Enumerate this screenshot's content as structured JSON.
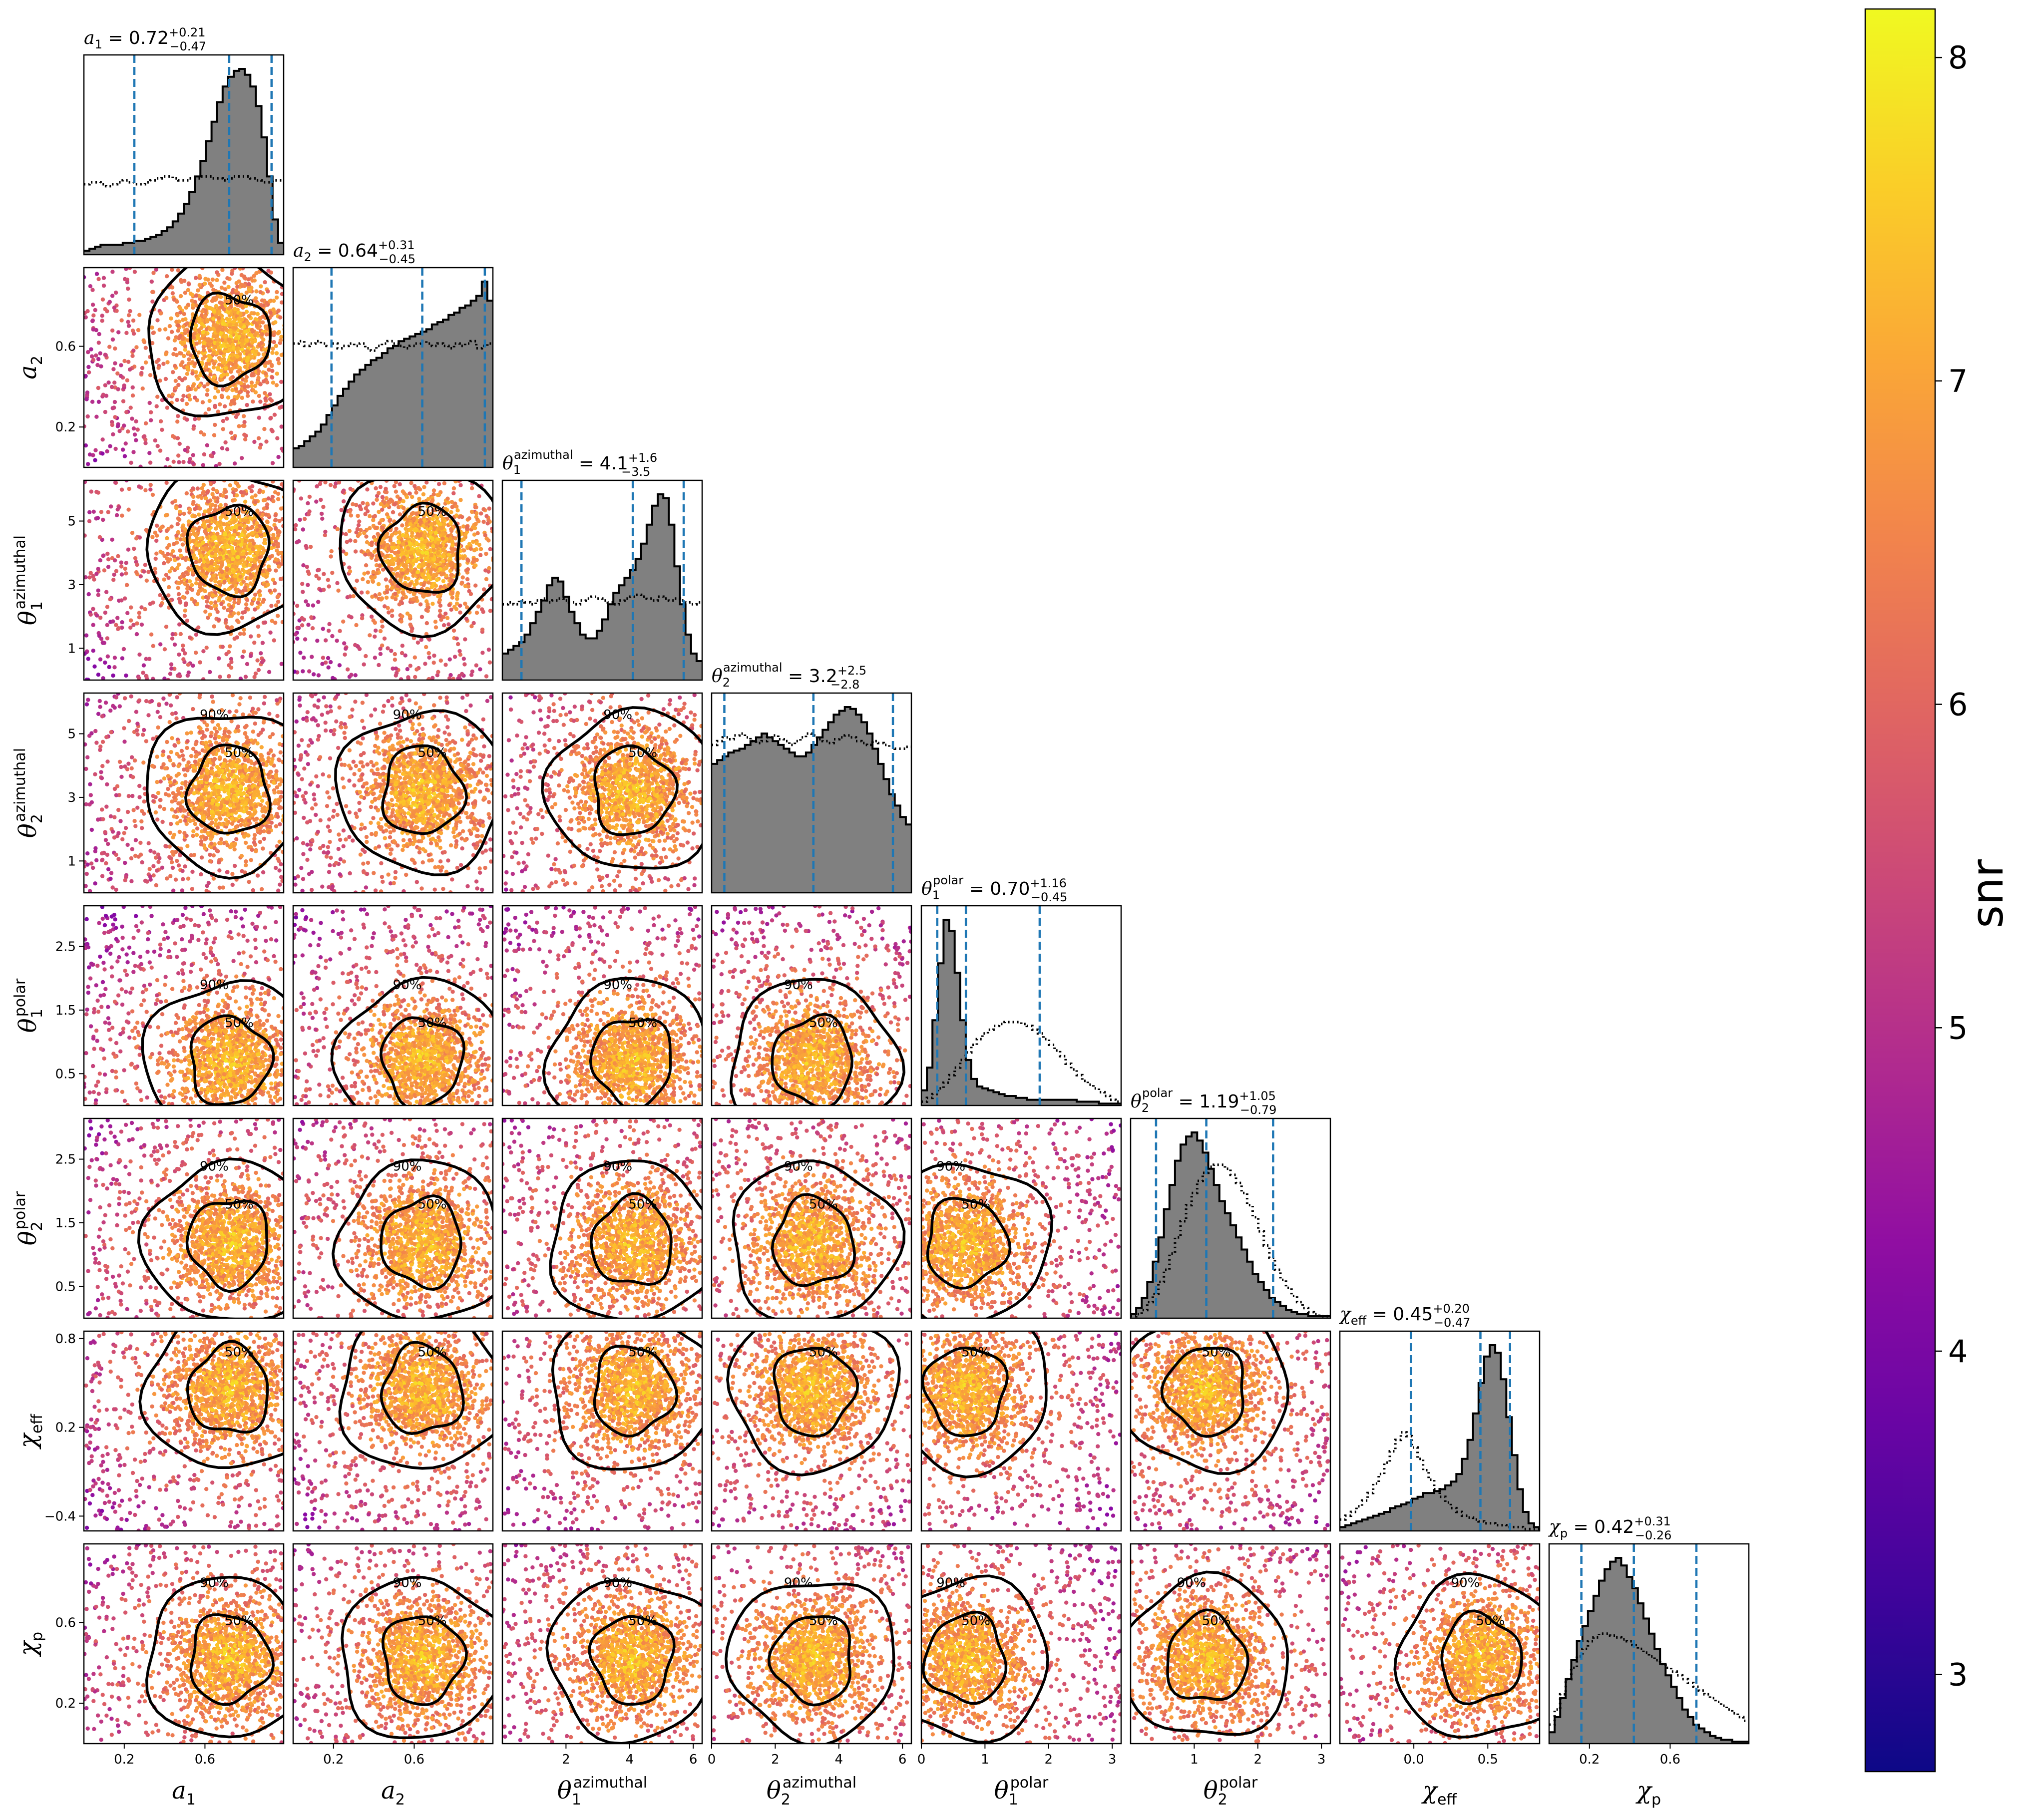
{
  "chart_data": {
    "type": "corner",
    "parameters": [
      {
        "key": "a1",
        "label_base": "a",
        "label_sub": "1",
        "label_sup": "",
        "title_value": "0.72",
        "title_plus": "+0.21",
        "title_minus": "−0.47",
        "range": [
          0.0,
          0.99
        ],
        "ticks": [
          0.2,
          0.6
        ],
        "tick_labels": [
          "0.2",
          "0.6"
        ],
        "median": 0.72,
        "low": 0.25,
        "high": 0.93
      },
      {
        "key": "a2",
        "label_base": "a",
        "label_sub": "2",
        "label_sup": "",
        "title_value": "0.64",
        "title_plus": "+0.31",
        "title_minus": "−0.45",
        "range": [
          0.0,
          0.99
        ],
        "ticks": [
          0.2,
          0.6
        ],
        "tick_labels": [
          "0.2",
          "0.6"
        ],
        "median": 0.64,
        "low": 0.19,
        "high": 0.95
      },
      {
        "key": "theta1_azimuthal",
        "label_base": "θ",
        "label_sub": "1",
        "label_sup": "azimuthal",
        "title_value": "4.1",
        "title_plus": "+1.6",
        "title_minus": "−3.5",
        "range": [
          0.0,
          6.28
        ],
        "ticks": [
          1,
          3,
          5
        ],
        "tick_labels": [
          "1",
          "3",
          "5"
        ],
        "xticks": [
          2,
          4,
          6
        ],
        "xtick_labels": [
          "2",
          "4",
          "6"
        ],
        "median": 4.1,
        "low": 0.6,
        "high": 5.7
      },
      {
        "key": "theta2_azimuthal",
        "label_base": "θ",
        "label_sub": "2",
        "label_sup": "azimuthal",
        "title_value": "3.2",
        "title_plus": "+2.5",
        "title_minus": "−2.8",
        "range": [
          0.0,
          6.28
        ],
        "ticks": [
          1,
          3,
          5
        ],
        "tick_labels": [
          "1",
          "3",
          "5"
        ],
        "xticks": [
          0,
          2,
          4,
          6
        ],
        "xtick_labels": [
          "0",
          "2",
          "4",
          "6"
        ],
        "median": 3.2,
        "low": 0.4,
        "high": 5.7
      },
      {
        "key": "theta1_polar",
        "label_base": "θ",
        "label_sub": "1",
        "label_sup": "polar",
        "title_value": "0.70",
        "title_plus": "+1.16",
        "title_minus": "−0.45",
        "range": [
          0.0,
          3.14
        ],
        "ticks": [
          0.5,
          1.5,
          2.5
        ],
        "tick_labels": [
          "0.5",
          "1.5",
          "2.5"
        ],
        "xticks": [
          0,
          1,
          2,
          3
        ],
        "xtick_labels": [
          "0",
          "1",
          "2",
          "3"
        ],
        "median": 0.7,
        "low": 0.25,
        "high": 1.86
      },
      {
        "key": "theta2_polar",
        "label_base": "θ",
        "label_sub": "2",
        "label_sup": "polar",
        "title_value": "1.19",
        "title_plus": "+1.05",
        "title_minus": "−0.79",
        "range": [
          0.0,
          3.14
        ],
        "ticks": [
          0.5,
          1.5,
          2.5
        ],
        "tick_labels": [
          "0.5",
          "1.5",
          "2.5"
        ],
        "xticks": [
          1,
          2,
          3
        ],
        "xtick_labels": [
          "1",
          "2",
          "3"
        ],
        "median": 1.19,
        "low": 0.4,
        "high": 2.24
      },
      {
        "key": "chi_eff",
        "label_base": "χ",
        "label_sub": "eff",
        "label_sup": "",
        "title_value": "0.45",
        "title_plus": "+0.20",
        "title_minus": "−0.47",
        "range": [
          -0.5,
          0.85
        ],
        "ticks": [
          -0.4,
          0.2,
          0.8
        ],
        "tick_labels": [
          "−0.4",
          "0.2",
          "0.8"
        ],
        "xticks": [
          0.0,
          0.5
        ],
        "xtick_labels": [
          "0.0",
          "0.5"
        ],
        "median": 0.45,
        "low": -0.02,
        "high": 0.65
      },
      {
        "key": "chi_p",
        "label_base": "χ",
        "label_sub": "p",
        "label_sup": "",
        "title_value": "0.42",
        "title_plus": "+0.31",
        "title_minus": "−0.26",
        "range": [
          0.0,
          0.99
        ],
        "ticks": [
          0.2,
          0.6
        ],
        "tick_labels": [
          "0.2",
          "0.6"
        ],
        "median": 0.42,
        "low": 0.16,
        "high": 0.73
      }
    ],
    "histograms": [
      {
        "posterior": [
          2,
          3,
          4,
          5,
          5,
          5,
          5,
          6,
          6,
          7,
          7,
          8,
          9,
          10,
          12,
          14,
          17,
          21,
          26,
          32,
          40,
          48,
          58,
          68,
          78,
          86,
          91,
          94,
          95,
          92,
          86,
          76,
          60,
          40,
          18,
          6
        ],
        "prior": [
          36,
          37,
          37,
          36,
          35,
          36,
          37,
          38,
          37,
          36,
          36,
          37,
          38,
          39,
          40,
          40,
          39,
          38,
          38,
          39,
          39,
          40,
          40,
          39,
          39,
          38,
          39,
          40,
          40,
          40,
          39,
          38,
          37,
          37,
          38,
          38
        ]
      },
      {
        "posterior": [
          8,
          9,
          11,
          13,
          15,
          18,
          22,
          26,
          30,
          33,
          36,
          39,
          41,
          43,
          45,
          46,
          48,
          50,
          51,
          53,
          54,
          55,
          56,
          57,
          58,
          60,
          61,
          62,
          64,
          65,
          67,
          68,
          70,
          72,
          78,
          70
        ],
        "prior": [
          52,
          53,
          51,
          52,
          53,
          52,
          51,
          52,
          50,
          51,
          52,
          51,
          52,
          50,
          49,
          51,
          52,
          53,
          52,
          51,
          50,
          51,
          52,
          53,
          52,
          51,
          52,
          51,
          50,
          52,
          51,
          52,
          53,
          50,
          51,
          52
        ]
      },
      {
        "posterior": [
          14,
          16,
          18,
          20,
          24,
          30,
          36,
          42,
          50,
          54,
          52,
          44,
          36,
          30,
          24,
          22,
          22,
          26,
          32,
          40,
          46,
          50,
          54,
          58,
          64,
          72,
          82,
          92,
          98,
          96,
          82,
          60,
          40,
          24,
          14,
          10
        ],
        "prior": [
          40,
          41,
          40,
          42,
          41,
          40,
          42,
          43,
          41,
          42,
          43,
          42,
          41,
          40,
          42,
          43,
          44,
          43,
          42,
          41,
          40,
          42,
          43,
          44,
          45,
          44,
          43,
          42,
          44,
          43,
          42,
          43,
          42,
          41,
          40,
          41
        ]
      },
      {
        "posterior": [
          68,
          70,
          72,
          74,
          75,
          76,
          78,
          80,
          82,
          84,
          82,
          80,
          78,
          76,
          74,
          72,
          72,
          74,
          78,
          82,
          86,
          90,
          94,
          96,
          98,
          97,
          94,
          90,
          84,
          76,
          68,
          60,
          52,
          46,
          40,
          36
        ],
        "prior": [
          78,
          80,
          82,
          81,
          83,
          84,
          82,
          80,
          79,
          80,
          82,
          83,
          81,
          80,
          78,
          80,
          82,
          84,
          83,
          81,
          80,
          79,
          81,
          82,
          83,
          82,
          80,
          79,
          78,
          80,
          79,
          78,
          77,
          76,
          76,
          77
        ]
      },
      {
        "posterior": [
          8,
          20,
          45,
          75,
          98,
          92,
          70,
          45,
          24,
          14,
          10,
          9,
          8,
          7,
          6,
          5,
          5,
          4,
          4,
          3,
          3,
          3,
          3,
          3,
          3,
          3,
          3,
          3,
          2,
          2,
          2,
          2,
          1,
          1,
          1,
          1
        ],
        "prior": [
          2,
          4,
          6,
          9,
          12,
          16,
          20,
          24,
          28,
          32,
          35,
          38,
          40,
          42,
          43,
          44,
          44,
          44,
          43,
          42,
          40,
          38,
          35,
          32,
          29,
          26,
          22,
          19,
          16,
          13,
          11,
          9,
          7,
          5,
          3,
          2
        ]
      },
      {
        "posterior": [
          2,
          5,
          10,
          18,
          28,
          40,
          54,
          66,
          78,
          86,
          90,
          92,
          88,
          82,
          74,
          66,
          58,
          52,
          46,
          40,
          34,
          28,
          22,
          18,
          14,
          10,
          8,
          6,
          4,
          3,
          2,
          2,
          1,
          1,
          1,
          1
        ],
        "prior": [
          1,
          2,
          4,
          8,
          12,
          18,
          24,
          32,
          40,
          48,
          56,
          62,
          68,
          72,
          75,
          76,
          76,
          74,
          71,
          67,
          62,
          56,
          50,
          43,
          36,
          30,
          24,
          19,
          15,
          11,
          8,
          5,
          3,
          2,
          1,
          1
        ]
      },
      {
        "posterior": [
          2,
          3,
          4,
          5,
          6,
          7,
          8,
          9,
          10,
          12,
          13,
          14,
          15,
          17,
          18,
          20,
          20,
          21,
          22,
          24,
          26,
          30,
          38,
          48,
          62,
          78,
          92,
          98,
          94,
          80,
          60,
          40,
          22,
          10,
          4,
          2
        ],
        "prior": [
          6,
          8,
          10,
          13,
          16,
          20,
          25,
          30,
          36,
          42,
          48,
          52,
          50,
          44,
          38,
          32,
          27,
          22,
          18,
          15,
          12,
          10,
          8,
          7,
          6,
          5,
          4,
          4,
          3,
          3,
          2,
          2,
          2,
          1,
          1,
          1
        ]
      },
      {
        "posterior": [
          6,
          14,
          24,
          34,
          44,
          54,
          62,
          70,
          78,
          86,
          92,
          96,
          98,
          94,
          88,
          82,
          74,
          66,
          58,
          50,
          42,
          36,
          30,
          24,
          18,
          14,
          10,
          8,
          6,
          4,
          3,
          2,
          2,
          1,
          1,
          1
        ],
        "prior": [
          10,
          18,
          26,
          34,
          40,
          46,
          50,
          54,
          56,
          58,
          58,
          57,
          56,
          55,
          54,
          52,
          50,
          48,
          46,
          44,
          42,
          40,
          38,
          36,
          34,
          32,
          30,
          28,
          26,
          24,
          22,
          20,
          18,
          16,
          14,
          12
        ]
      }
    ],
    "colorbar": {
      "label": "snr",
      "min": 2.7,
      "max": 8.15,
      "ticks": [
        3,
        4,
        5,
        6,
        7,
        8
      ],
      "tick_labels": [
        "3",
        "4",
        "5",
        "6",
        "7",
        "8"
      ],
      "colormap": "plasma"
    },
    "contour_levels": [
      "50%",
      "90%"
    ],
    "colors": {
      "histogram_fill": "#808080",
      "quantile_lines": "#1f77b4",
      "contours": "#000000",
      "scatter_dominant": "#f5e032"
    }
  }
}
